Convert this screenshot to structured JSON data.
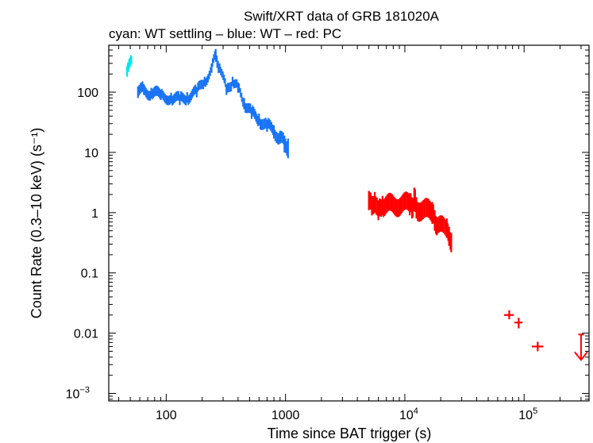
{
  "chart_data": {
    "type": "scatter",
    "title": "Swift/XRT data of GRB 181020A",
    "subtitle": "cyan: WT settling – blue: WT – red: PC",
    "xlabel": "Time since BAT trigger (s)",
    "ylabel": "Count Rate (0.3–10 keV) (s⁻¹)",
    "xscale": "log",
    "yscale": "log",
    "xlim": [
      33,
      350000
    ],
    "ylim": [
      0.00075,
      600
    ],
    "x_tick_labels": [
      {
        "value": 100,
        "base": "100",
        "exp": ""
      },
      {
        "value": 1000,
        "base": "1000",
        "exp": ""
      },
      {
        "value": 10000,
        "base": "10",
        "exp": "4"
      },
      {
        "value": 100000,
        "base": "10",
        "exp": "5"
      }
    ],
    "y_tick_labels": [
      {
        "value": 100,
        "base": "100",
        "exp": ""
      },
      {
        "value": 10,
        "base": "10",
        "exp": ""
      },
      {
        "value": 1,
        "base": "1",
        "exp": ""
      },
      {
        "value": 0.1,
        "base": "0.1",
        "exp": ""
      },
      {
        "value": 0.01,
        "base": "0.01",
        "exp": ""
      },
      {
        "value": 0.001,
        "base": "10",
        "exp": "−3"
      }
    ],
    "series": [
      {
        "name": "WT settling",
        "color": "#00e5ee",
        "points": [
          {
            "t": 47,
            "rate": 220,
            "lo": 180,
            "hi": 270
          },
          {
            "t": 48,
            "rate": 260,
            "lo": 215,
            "hi": 310
          },
          {
            "t": 49,
            "rate": 300,
            "lo": 250,
            "hi": 360
          },
          {
            "t": 50,
            "rate": 320,
            "lo": 270,
            "hi": 380
          },
          {
            "t": 51,
            "rate": 340,
            "lo": 290,
            "hi": 400
          }
        ]
      },
      {
        "name": "WT",
        "color": "#1874f5",
        "points": [
          {
            "t": 58,
            "rate": 100,
            "lo": 80,
            "hi": 125
          },
          {
            "t": 65,
            "rate": 110,
            "lo": 90,
            "hi": 135
          },
          {
            "t": 75,
            "rate": 95,
            "lo": 78,
            "hi": 118
          },
          {
            "t": 90,
            "rate": 90,
            "lo": 74,
            "hi": 110
          },
          {
            "t": 110,
            "rate": 80,
            "lo": 65,
            "hi": 98
          },
          {
            "t": 130,
            "rate": 75,
            "lo": 61,
            "hi": 92
          },
          {
            "t": 150,
            "rate": 82,
            "lo": 67,
            "hi": 100
          },
          {
            "t": 180,
            "rate": 100,
            "lo": 82,
            "hi": 122
          },
          {
            "t": 210,
            "rate": 150,
            "lo": 125,
            "hi": 180
          },
          {
            "t": 240,
            "rate": 250,
            "lo": 210,
            "hi": 300
          },
          {
            "t": 260,
            "rate": 400,
            "lo": 320,
            "hi": 520
          },
          {
            "t": 280,
            "rate": 250,
            "lo": 210,
            "hi": 300
          },
          {
            "t": 320,
            "rate": 110,
            "lo": 90,
            "hi": 135
          },
          {
            "t": 360,
            "rate": 150,
            "lo": 125,
            "hi": 180
          },
          {
            "t": 400,
            "rate": 120,
            "lo": 98,
            "hi": 146
          },
          {
            "t": 450,
            "rate": 65,
            "lo": 52,
            "hi": 80
          },
          {
            "t": 520,
            "rate": 45,
            "lo": 36,
            "hi": 56
          },
          {
            "t": 600,
            "rate": 35,
            "lo": 28,
            "hi": 44
          },
          {
            "t": 700,
            "rate": 28,
            "lo": 22,
            "hi": 35
          },
          {
            "t": 800,
            "rate": 22,
            "lo": 17,
            "hi": 28
          },
          {
            "t": 900,
            "rate": 18,
            "lo": 14,
            "hi": 23
          },
          {
            "t": 980,
            "rate": 14,
            "lo": 10,
            "hi": 19
          },
          {
            "t": 1050,
            "rate": 12,
            "lo": 8,
            "hi": 17
          }
        ]
      },
      {
        "name": "PC",
        "color": "#ff0000",
        "points": [
          {
            "t": 5000,
            "rate": 1.6,
            "lo": 1.1,
            "hi": 2.3
          },
          {
            "t": 5300,
            "rate": 1.3,
            "lo": 0.9,
            "hi": 1.9
          },
          {
            "t": 5600,
            "rate": 1.5,
            "lo": 1.0,
            "hi": 2.2
          },
          {
            "t": 6000,
            "rate": 1.1,
            "lo": 0.75,
            "hi": 1.6
          },
          {
            "t": 6500,
            "rate": 1.3,
            "lo": 0.9,
            "hi": 1.9
          },
          {
            "t": 11000,
            "rate": 1.4,
            "lo": 0.9,
            "hi": 2.1
          },
          {
            "t": 11500,
            "rate": 1.2,
            "lo": 0.8,
            "hi": 1.8
          },
          {
            "t": 12000,
            "rate": 1.6,
            "lo": 1.05,
            "hi": 2.6
          },
          {
            "t": 12500,
            "rate": 1.2,
            "lo": 0.8,
            "hi": 1.8
          },
          {
            "t": 17000,
            "rate": 1.0,
            "lo": 0.65,
            "hi": 1.5
          },
          {
            "t": 17800,
            "rate": 0.75,
            "lo": 0.5,
            "hi": 1.1
          },
          {
            "t": 18500,
            "rate": 0.6,
            "lo": 0.42,
            "hi": 0.85
          },
          {
            "t": 22500,
            "rate": 0.55,
            "lo": 0.38,
            "hi": 0.8
          },
          {
            "t": 23500,
            "rate": 0.4,
            "lo": 0.28,
            "hi": 0.58
          },
          {
            "t": 24500,
            "rate": 0.32,
            "lo": 0.22,
            "hi": 0.46
          },
          {
            "t": 75000,
            "rate": 0.02,
            "lo": 0.017,
            "hi": 0.024,
            "tlo": 68000,
            "thi": 82000
          },
          {
            "t": 90000,
            "rate": 0.015,
            "lo": 0.012,
            "hi": 0.018,
            "tlo": 83000,
            "thi": 97000
          },
          {
            "t": 130000,
            "rate": 0.006,
            "lo": 0.005,
            "hi": 0.0072,
            "tlo": 116000,
            "thi": 145000
          }
        ],
        "upper_limits": [
          {
            "t": 300000,
            "rate": 0.0095,
            "tlo": 285000,
            "thi": 318000
          }
        ]
      }
    ]
  }
}
